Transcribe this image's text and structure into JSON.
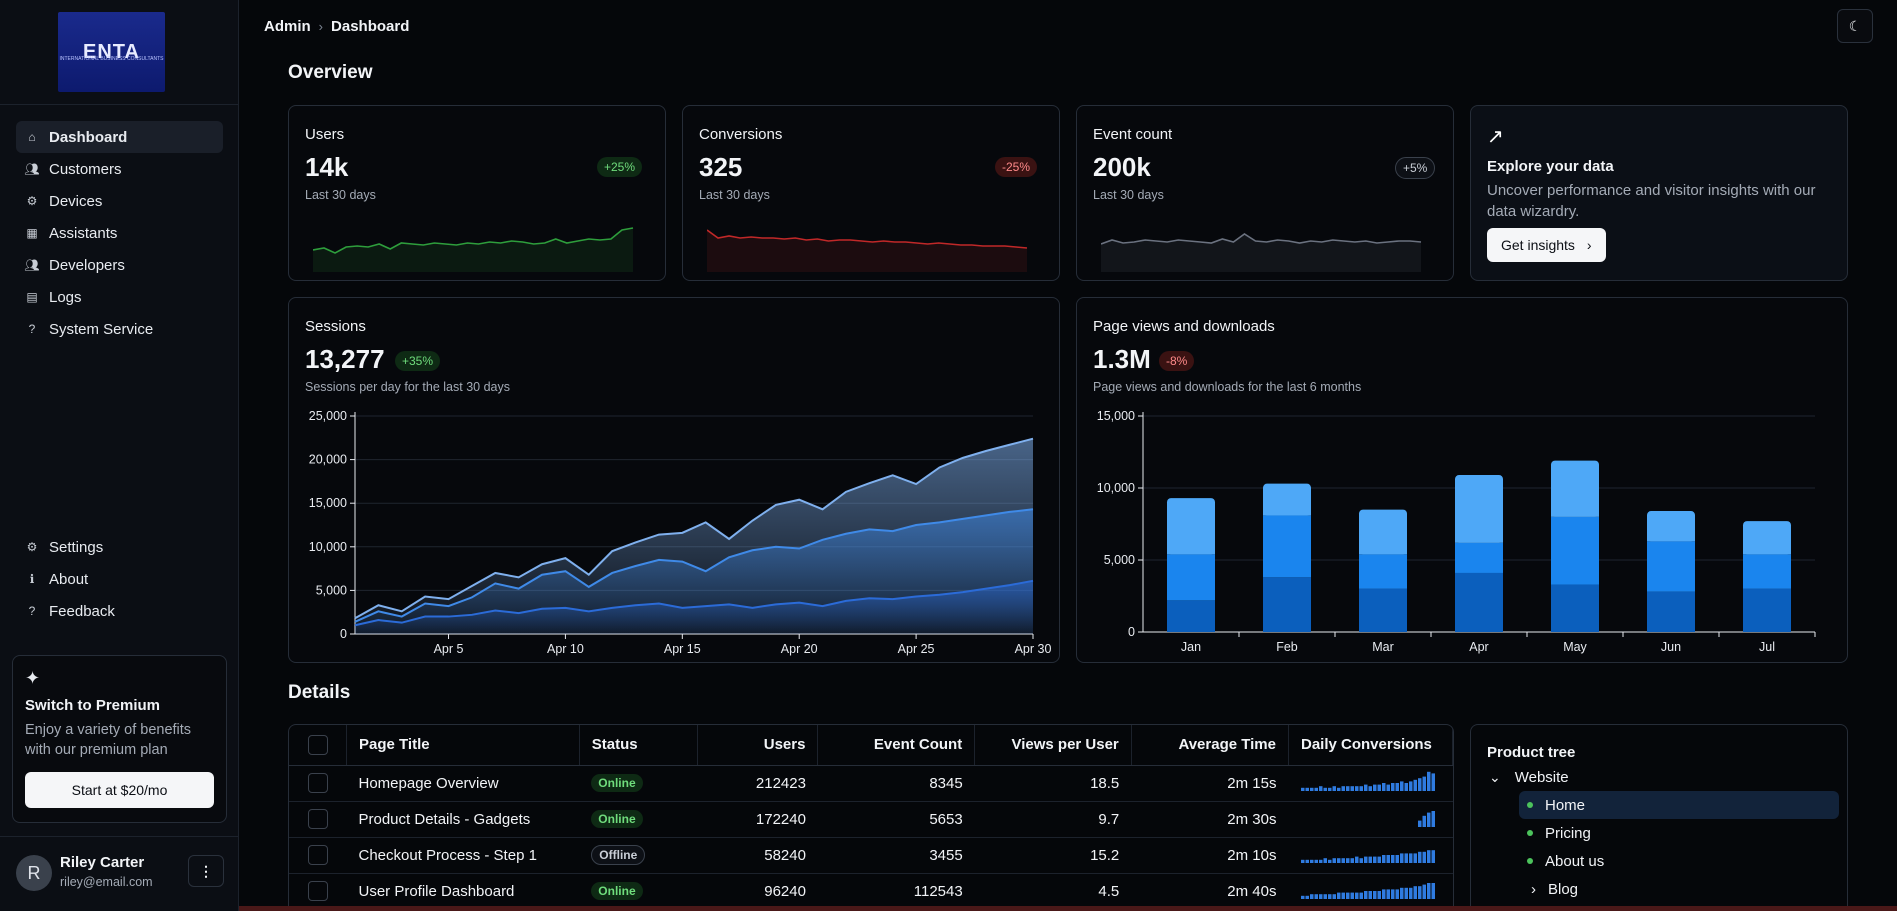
{
  "brand": {
    "logo_text": "ENTA",
    "logo_tagline": "INTERNATIONAL BUSINESS CONSULTANTS"
  },
  "sidebar": {
    "main_items": [
      {
        "label": "Dashboard",
        "icon": "home-icon"
      },
      {
        "label": "Customers",
        "icon": "people-icon"
      },
      {
        "label": "Devices",
        "icon": "gear-icon"
      },
      {
        "label": "Assistants",
        "icon": "chart-icon"
      },
      {
        "label": "Developers",
        "icon": "people-icon"
      },
      {
        "label": "Logs",
        "icon": "clipboard-icon"
      },
      {
        "label": "System Service",
        "icon": "help-icon"
      }
    ],
    "secondary_items": [
      {
        "label": "Settings",
        "icon": "gear-icon"
      },
      {
        "label": "About",
        "icon": "info-icon"
      },
      {
        "label": "Feedback",
        "icon": "help-icon"
      }
    ],
    "premium": {
      "title": "Switch to Premium",
      "description": "Enjoy a variety of benefits with our premium plan",
      "button": "Start at $20/mo"
    },
    "user": {
      "initial": "R",
      "name": "Riley Carter",
      "email": "riley@email.com",
      "menu": "⋮"
    }
  },
  "header": {
    "crumb_root": "Admin",
    "crumb_sep": "›",
    "crumb_current": "Dashboard",
    "theme_icon": "☾"
  },
  "overview": {
    "heading": "Overview",
    "stats": [
      {
        "title": "Users",
        "value": "14k",
        "badge": "+25%",
        "subtitle": "Last 30 days",
        "trend": "up",
        "color": "#2e9e3c"
      },
      {
        "title": "Conversions",
        "value": "325",
        "badge": "-25%",
        "subtitle": "Last 30 days",
        "trend": "down",
        "color": "#c02828"
      },
      {
        "title": "Event count",
        "value": "200k",
        "badge": "+5%",
        "subtitle": "Last 30 days",
        "trend": "neutral",
        "color": "#6b7280"
      }
    ],
    "explore": {
      "icon": "insights-icon",
      "title": "Explore your data",
      "description": "Uncover performance and visitor insights with our data wizardry.",
      "button": "Get insights",
      "button_arrow": "›"
    }
  },
  "sessions": {
    "title": "Sessions",
    "value": "13,277",
    "badge": "+35%",
    "subtitle": "Sessions per day for the last 30 days"
  },
  "pageviews": {
    "title": "Page views and downloads",
    "value": "1.3M",
    "badge": "-8%",
    "subtitle": "Page views and downloads for the last 6 months"
  },
  "chart_data": [
    {
      "type": "area",
      "x": [
        "Apr 1",
        "Apr 2",
        "Apr 3",
        "Apr 4",
        "Apr 5",
        "Apr 6",
        "Apr 7",
        "Apr 8",
        "Apr 9",
        "Apr 10",
        "Apr 11",
        "Apr 12",
        "Apr 13",
        "Apr 14",
        "Apr 15",
        "Apr 16",
        "Apr 17",
        "Apr 18",
        "Apr 19",
        "Apr 20",
        "Apr 21",
        "Apr 22",
        "Apr 23",
        "Apr 24",
        "Apr 25",
        "Apr 26",
        "Apr 27",
        "Apr 28",
        "Apr 29",
        "Apr 30"
      ],
      "xticks": [
        "Apr 5",
        "Apr 10",
        "Apr 15",
        "Apr 20",
        "Apr 25",
        "Apr 30"
      ],
      "yticks": [
        "0",
        "5,000",
        "10,000",
        "15,000",
        "20,000",
        "25,000"
      ],
      "ylim": [
        0,
        25000
      ],
      "series": [
        {
          "values": [
            1000,
            1600,
            1300,
            2000,
            2000,
            2200,
            2700,
            2400,
            2900,
            3000,
            2600,
            3000,
            3300,
            3500,
            3000,
            3200,
            3400,
            3000,
            3400,
            3600,
            3200,
            3800,
            4100,
            4000,
            4300,
            4500,
            4800,
            5200,
            5600,
            6100
          ]
        },
        {
          "values": [
            1400,
            2600,
            2000,
            3500,
            3200,
            4200,
            5800,
            5200,
            6800,
            7200,
            5400,
            7000,
            7800,
            8500,
            8300,
            7200,
            8800,
            9600,
            10000,
            9800,
            10800,
            11500,
            12000,
            11800,
            12500,
            12800,
            13200,
            13600,
            14000,
            14300
          ]
        },
        {
          "values": [
            1800,
            3300,
            2600,
            4300,
            4000,
            5500,
            7000,
            6500,
            8000,
            8700,
            6800,
            9500,
            10500,
            11400,
            11600,
            12800,
            10900,
            13000,
            14800,
            15400,
            14300,
            16300,
            17300,
            18200,
            17200,
            19100,
            20200,
            21000,
            21700,
            22400
          ]
        }
      ],
      "colors": [
        "#2b6bd8",
        "#3f8ae8",
        "#7fb0ee"
      ]
    },
    {
      "type": "bar",
      "categories": [
        "Jan",
        "Feb",
        "Mar",
        "Apr",
        "May",
        "Jun",
        "Jul"
      ],
      "yticks": [
        "0",
        "5,000",
        "10,000",
        "15,000"
      ],
      "ylim": [
        0,
        15000
      ],
      "series": [
        {
          "values": [
            2200,
            3800,
            3000,
            4100,
            3300,
            2800,
            3000
          ],
          "color": "#0b5fbd"
        },
        {
          "values": [
            3200,
            4300,
            2400,
            2100,
            4700,
            3500,
            2400
          ],
          "color": "#1a85ee"
        },
        {
          "values": [
            3900,
            2200,
            3100,
            4700,
            3900,
            2100,
            2300
          ],
          "color": "#4ea8f7"
        }
      ]
    }
  ],
  "details": {
    "heading": "Details",
    "columns": [
      "Page Title",
      "Status",
      "Users",
      "Event Count",
      "Views per User",
      "Average Time",
      "Daily Conversions"
    ],
    "rows": [
      {
        "title": "Homepage Overview",
        "status": "Online",
        "users": "212423",
        "events": "8345",
        "views": "18.5",
        "time": "2m 15s"
      },
      {
        "title": "Product Details - Gadgets",
        "status": "Online",
        "users": "172240",
        "events": "5653",
        "views": "9.7",
        "time": "2m 30s"
      },
      {
        "title": "Checkout Process - Step 1",
        "status": "Offline",
        "users": "58240",
        "events": "3455",
        "views": "15.2",
        "time": "2m 10s"
      },
      {
        "title": "User Profile Dashboard",
        "status": "Online",
        "users": "96240",
        "events": "112543",
        "views": "4.5",
        "time": "2m 40s"
      }
    ]
  },
  "tree": {
    "title": "Product tree",
    "root": "Website",
    "children": [
      "Home",
      "Pricing",
      "About us"
    ],
    "collapsed_child": "Blog",
    "expand_icon": "⌄",
    "collapsed_icon": "›"
  }
}
